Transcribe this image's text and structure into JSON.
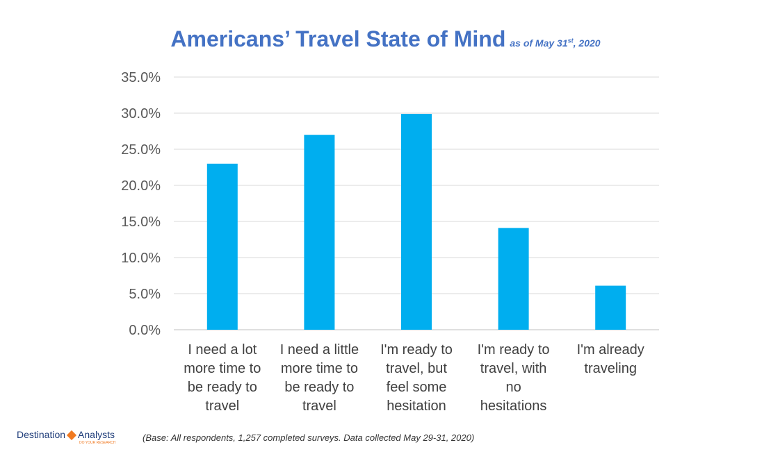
{
  "title": {
    "main": "Americans’ Travel State of Mind",
    "sub_prefix": "as of May 31",
    "sub_sup": "st",
    "sub_suffix": ", 2020"
  },
  "footnote": "(Base: All respondents, 1,257 completed surveys. Data collected May 29-31, 2020)",
  "logo": {
    "left": "Destination",
    "right": "Analysts",
    "tagline": "DO YOUR RESEARCH"
  },
  "colors": {
    "bar": "#00AEEF",
    "title": "#4472C4",
    "grid": "#d9d9d9"
  },
  "chart_data": {
    "type": "bar",
    "categories": [
      [
        "I need a lot",
        "more time to",
        "be ready to",
        "travel"
      ],
      [
        "I need a little",
        "more time to",
        "be ready to",
        "travel"
      ],
      [
        "I'm ready to",
        "travel, but",
        "feel  some",
        "hesitation"
      ],
      [
        "I'm ready to",
        "travel, with",
        "no",
        "hesitations"
      ],
      [
        "I'm already",
        "traveling"
      ]
    ],
    "values": [
      23.0,
      27.0,
      29.9,
      14.1,
      6.1
    ],
    "ylim": [
      0,
      35
    ],
    "yticks": [
      "0.0%",
      "5.0%",
      "10.0%",
      "15.0%",
      "20.0%",
      "25.0%",
      "30.0%",
      "35.0%"
    ],
    "grid": true,
    "legend": "none"
  }
}
